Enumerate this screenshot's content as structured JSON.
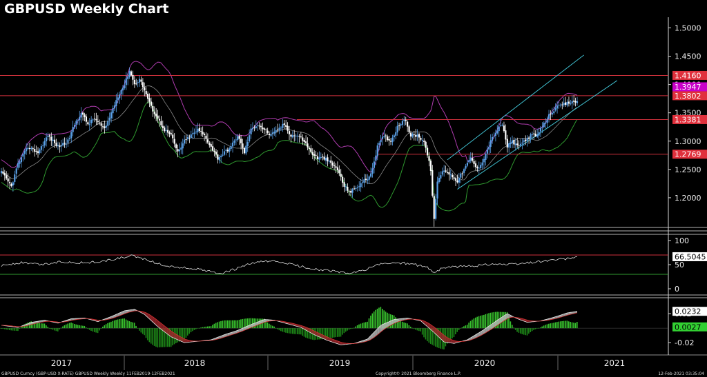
{
  "title": "GBPUSD Weekly Chart",
  "footer": {
    "left": "GBPUSD Curncy (GBP-USD X-RATE) GBPUSD Weekly  Weekly 11FEB2019-12FEB2021",
    "center": "Copyright© 2021 Bloomberg Finance L.P.",
    "right": "12-Feb-2021 03:35:04"
  },
  "colors": {
    "bull": "#5aa0e6",
    "bear": "#ffffff",
    "hline": "#d0313c",
    "channel": "#40c0d0",
    "upper_band": "#b03cb0",
    "lower_band": "#2f9a2f",
    "mid_band": "#8a8a8a",
    "macd_up": "#39c42e",
    "macd_down": "#1e8a18"
  },
  "chart_data": [
    {
      "type": "candlestick",
      "ylim": [
        1.15,
        1.52
      ],
      "yticks": [
        "1.5000",
        "1.4500",
        "1.4000",
        "1.3500",
        "1.3000",
        "1.2500",
        "1.2000"
      ],
      "xlabels": [
        "2017",
        "2018",
        "2019",
        "2020",
        "2021"
      ],
      "horizontal_levels": [
        {
          "label": "1.4160",
          "value": 1.416
        },
        {
          "label": "1.3802",
          "value": 1.3802
        },
        {
          "label": "1.3381",
          "value": 1.3381
        },
        {
          "label": "1.2769",
          "value": 1.2769
        }
      ],
      "band_label": {
        "label": "1.3947",
        "value": 1.3947
      },
      "anchors": [
        [
          0,
          1.245
        ],
        [
          6,
          1.22
        ],
        [
          10,
          1.26
        ],
        [
          16,
          1.29
        ],
        [
          22,
          1.28
        ],
        [
          28,
          1.31
        ],
        [
          34,
          1.29
        ],
        [
          40,
          1.3
        ],
        [
          44,
          1.33
        ],
        [
          48,
          1.35
        ],
        [
          52,
          1.33
        ],
        [
          56,
          1.34
        ],
        [
          62,
          1.32
        ],
        [
          66,
          1.35
        ],
        [
          70,
          1.38
        ],
        [
          74,
          1.4
        ],
        [
          77,
          1.425
        ],
        [
          80,
          1.4
        ],
        [
          83,
          1.41
        ],
        [
          86,
          1.39
        ],
        [
          90,
          1.36
        ],
        [
          94,
          1.34
        ],
        [
          98,
          1.32
        ],
        [
          102,
          1.31
        ],
        [
          106,
          1.28
        ],
        [
          110,
          1.3
        ],
        [
          114,
          1.31
        ],
        [
          118,
          1.32
        ],
        [
          122,
          1.31
        ],
        [
          126,
          1.29
        ],
        [
          130,
          1.27
        ],
        [
          134,
          1.28
        ],
        [
          138,
          1.29
        ],
        [
          142,
          1.31
        ],
        [
          146,
          1.28
        ],
        [
          150,
          1.32
        ],
        [
          154,
          1.33
        ],
        [
          158,
          1.32
        ],
        [
          162,
          1.31
        ],
        [
          166,
          1.32
        ],
        [
          170,
          1.33
        ],
        [
          174,
          1.31
        ],
        [
          178,
          1.31
        ],
        [
          182,
          1.3
        ],
        [
          186,
          1.28
        ],
        [
          190,
          1.27
        ],
        [
          194,
          1.27
        ],
        [
          198,
          1.26
        ],
        [
          202,
          1.25
        ],
        [
          206,
          1.22
        ],
        [
          210,
          1.21
        ],
        [
          214,
          1.22
        ],
        [
          218,
          1.23
        ],
        [
          222,
          1.24
        ],
        [
          226,
          1.29
        ],
        [
          230,
          1.31
        ],
        [
          234,
          1.3
        ],
        [
          238,
          1.325
        ],
        [
          242,
          1.34
        ],
        [
          246,
          1.31
        ],
        [
          250,
          1.31
        ],
        [
          254,
          1.3
        ],
        [
          258,
          1.25
        ],
        [
          260,
          1.16
        ],
        [
          262,
          1.23
        ],
        [
          266,
          1.25
        ],
        [
          270,
          1.24
        ],
        [
          274,
          1.23
        ],
        [
          278,
          1.25
        ],
        [
          282,
          1.27
        ],
        [
          286,
          1.25
        ],
        [
          290,
          1.27
        ],
        [
          294,
          1.3
        ],
        [
          298,
          1.32
        ],
        [
          301,
          1.33
        ],
        [
          304,
          1.29
        ],
        [
          307,
          1.3
        ],
        [
          310,
          1.29
        ],
        [
          314,
          1.3
        ],
        [
          318,
          1.31
        ],
        [
          322,
          1.31
        ],
        [
          326,
          1.33
        ],
        [
          330,
          1.35
        ],
        [
          334,
          1.36
        ],
        [
          338,
          1.365
        ],
        [
          342,
          1.368
        ],
        [
          346,
          1.37
        ]
      ],
      "channel": [
        {
          "x": [
            268,
            350
          ],
          "y": [
            1.267,
            1.452
          ]
        },
        {
          "x": [
            274,
            370
          ],
          "y": [
            1.215,
            1.407
          ]
        }
      ]
    },
    {
      "type": "line",
      "ylim": [
        -10,
        110
      ],
      "yticks": [
        "100",
        "50",
        "0"
      ],
      "levels": [
        70,
        30
      ],
      "last_value_label": "66.5045",
      "last_value": 66.5,
      "anchors": [
        [
          0,
          48
        ],
        [
          12,
          54
        ],
        [
          24,
          50
        ],
        [
          36,
          56
        ],
        [
          48,
          54
        ],
        [
          60,
          56
        ],
        [
          72,
          64
        ],
        [
          78,
          68
        ],
        [
          86,
          62
        ],
        [
          94,
          52
        ],
        [
          102,
          46
        ],
        [
          108,
          44
        ],
        [
          116,
          42
        ],
        [
          124,
          36
        ],
        [
          132,
          32
        ],
        [
          140,
          40
        ],
        [
          150,
          52
        ],
        [
          160,
          58
        ],
        [
          170,
          54
        ],
        [
          180,
          46
        ],
        [
          190,
          40
        ],
        [
          200,
          36
        ],
        [
          208,
          32
        ],
        [
          216,
          36
        ],
        [
          226,
          50
        ],
        [
          236,
          54
        ],
        [
          246,
          52
        ],
        [
          256,
          44
        ],
        [
          260,
          34
        ],
        [
          266,
          44
        ],
        [
          276,
          46
        ],
        [
          286,
          48
        ],
        [
          296,
          52
        ],
        [
          304,
          50
        ],
        [
          312,
          52
        ],
        [
          322,
          56
        ],
        [
          332,
          60
        ],
        [
          340,
          62
        ],
        [
          346,
          66.5
        ]
      ]
    },
    {
      "type": "macd",
      "ylim": [
        -0.035,
        0.04
      ],
      "yticks": [
        "0.02",
        "-0.02"
      ],
      "macd_label": "0.0232",
      "macd_value": 0.0232,
      "hist_label": "0.0027",
      "hist_value": 0.0027,
      "anchors": [
        [
          0,
          0.004
        ],
        [
          10,
          0.001
        ],
        [
          18,
          0.008
        ],
        [
          26,
          0.011
        ],
        [
          34,
          0.007
        ],
        [
          42,
          0.013
        ],
        [
          50,
          0.014
        ],
        [
          58,
          0.009
        ],
        [
          66,
          0.016
        ],
        [
          74,
          0.024
        ],
        [
          80,
          0.026
        ],
        [
          86,
          0.019
        ],
        [
          94,
          0.002
        ],
        [
          102,
          -0.012
        ],
        [
          110,
          -0.02
        ],
        [
          118,
          -0.018
        ],
        [
          126,
          -0.016
        ],
        [
          134,
          -0.009
        ],
        [
          142,
          -0.003
        ],
        [
          150,
          0.005
        ],
        [
          158,
          0.012
        ],
        [
          164,
          0.011
        ],
        [
          172,
          0.006
        ],
        [
          180,
          0.001
        ],
        [
          188,
          -0.009
        ],
        [
          196,
          -0.017
        ],
        [
          204,
          -0.023
        ],
        [
          212,
          -0.021
        ],
        [
          220,
          -0.015
        ],
        [
          228,
          0.004
        ],
        [
          236,
          0.012
        ],
        [
          244,
          0.014
        ],
        [
          252,
          0.01
        ],
        [
          260,
          -0.006
        ],
        [
          266,
          -0.019
        ],
        [
          272,
          -0.021
        ],
        [
          280,
          -0.016
        ],
        [
          290,
          -0.002
        ],
        [
          298,
          0.011
        ],
        [
          304,
          0.02
        ],
        [
          310,
          0.013
        ],
        [
          316,
          0.008
        ],
        [
          324,
          0.01
        ],
        [
          332,
          0.015
        ],
        [
          340,
          0.021
        ],
        [
          346,
          0.0232
        ]
      ]
    }
  ]
}
